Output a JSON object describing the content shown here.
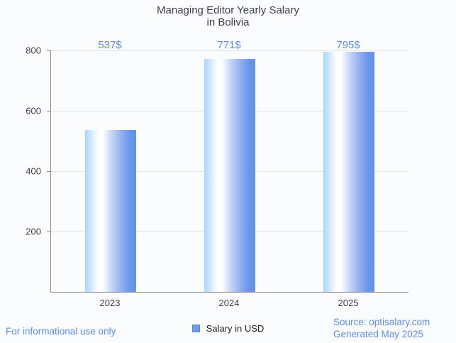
{
  "title": {
    "line1": "Managing Editor Yearly Salary",
    "line2": "in Bolivia"
  },
  "chart_data": {
    "type": "bar",
    "categories": [
      "2023",
      "2024",
      "2025"
    ],
    "values": [
      537,
      771,
      795
    ],
    "value_labels": [
      "537$",
      "771$",
      "795$"
    ],
    "series": [
      {
        "name": "Salary in USD",
        "values": [
          537,
          771,
          795
        ]
      }
    ],
    "title": "Managing Editor Yearly Salary in Bolivia",
    "xlabel": "",
    "ylabel": "",
    "ylim": [
      0,
      800
    ],
    "yticks": [
      200,
      400,
      600,
      800
    ],
    "grid": true,
    "legend_position": "bottom"
  },
  "legend": {
    "label": "Salary in USD",
    "swatch_color": "#6d9eeb"
  },
  "footer": {
    "disclaimer": "For informational use only",
    "source": "Source: optisalary.com",
    "generated": "Generated May 2025"
  },
  "colors": {
    "accent_blue_text": "#5f8ce8",
    "bar_gradient_left": "#abd5fb",
    "bar_gradient_mid": "#ffffff",
    "bar_gradient_right": "#6392e9",
    "gridline": "#e2e4e7",
    "axis_line": "#8b8b8b",
    "dark_text": "#3b3f45",
    "background": "#fbfcfe"
  }
}
